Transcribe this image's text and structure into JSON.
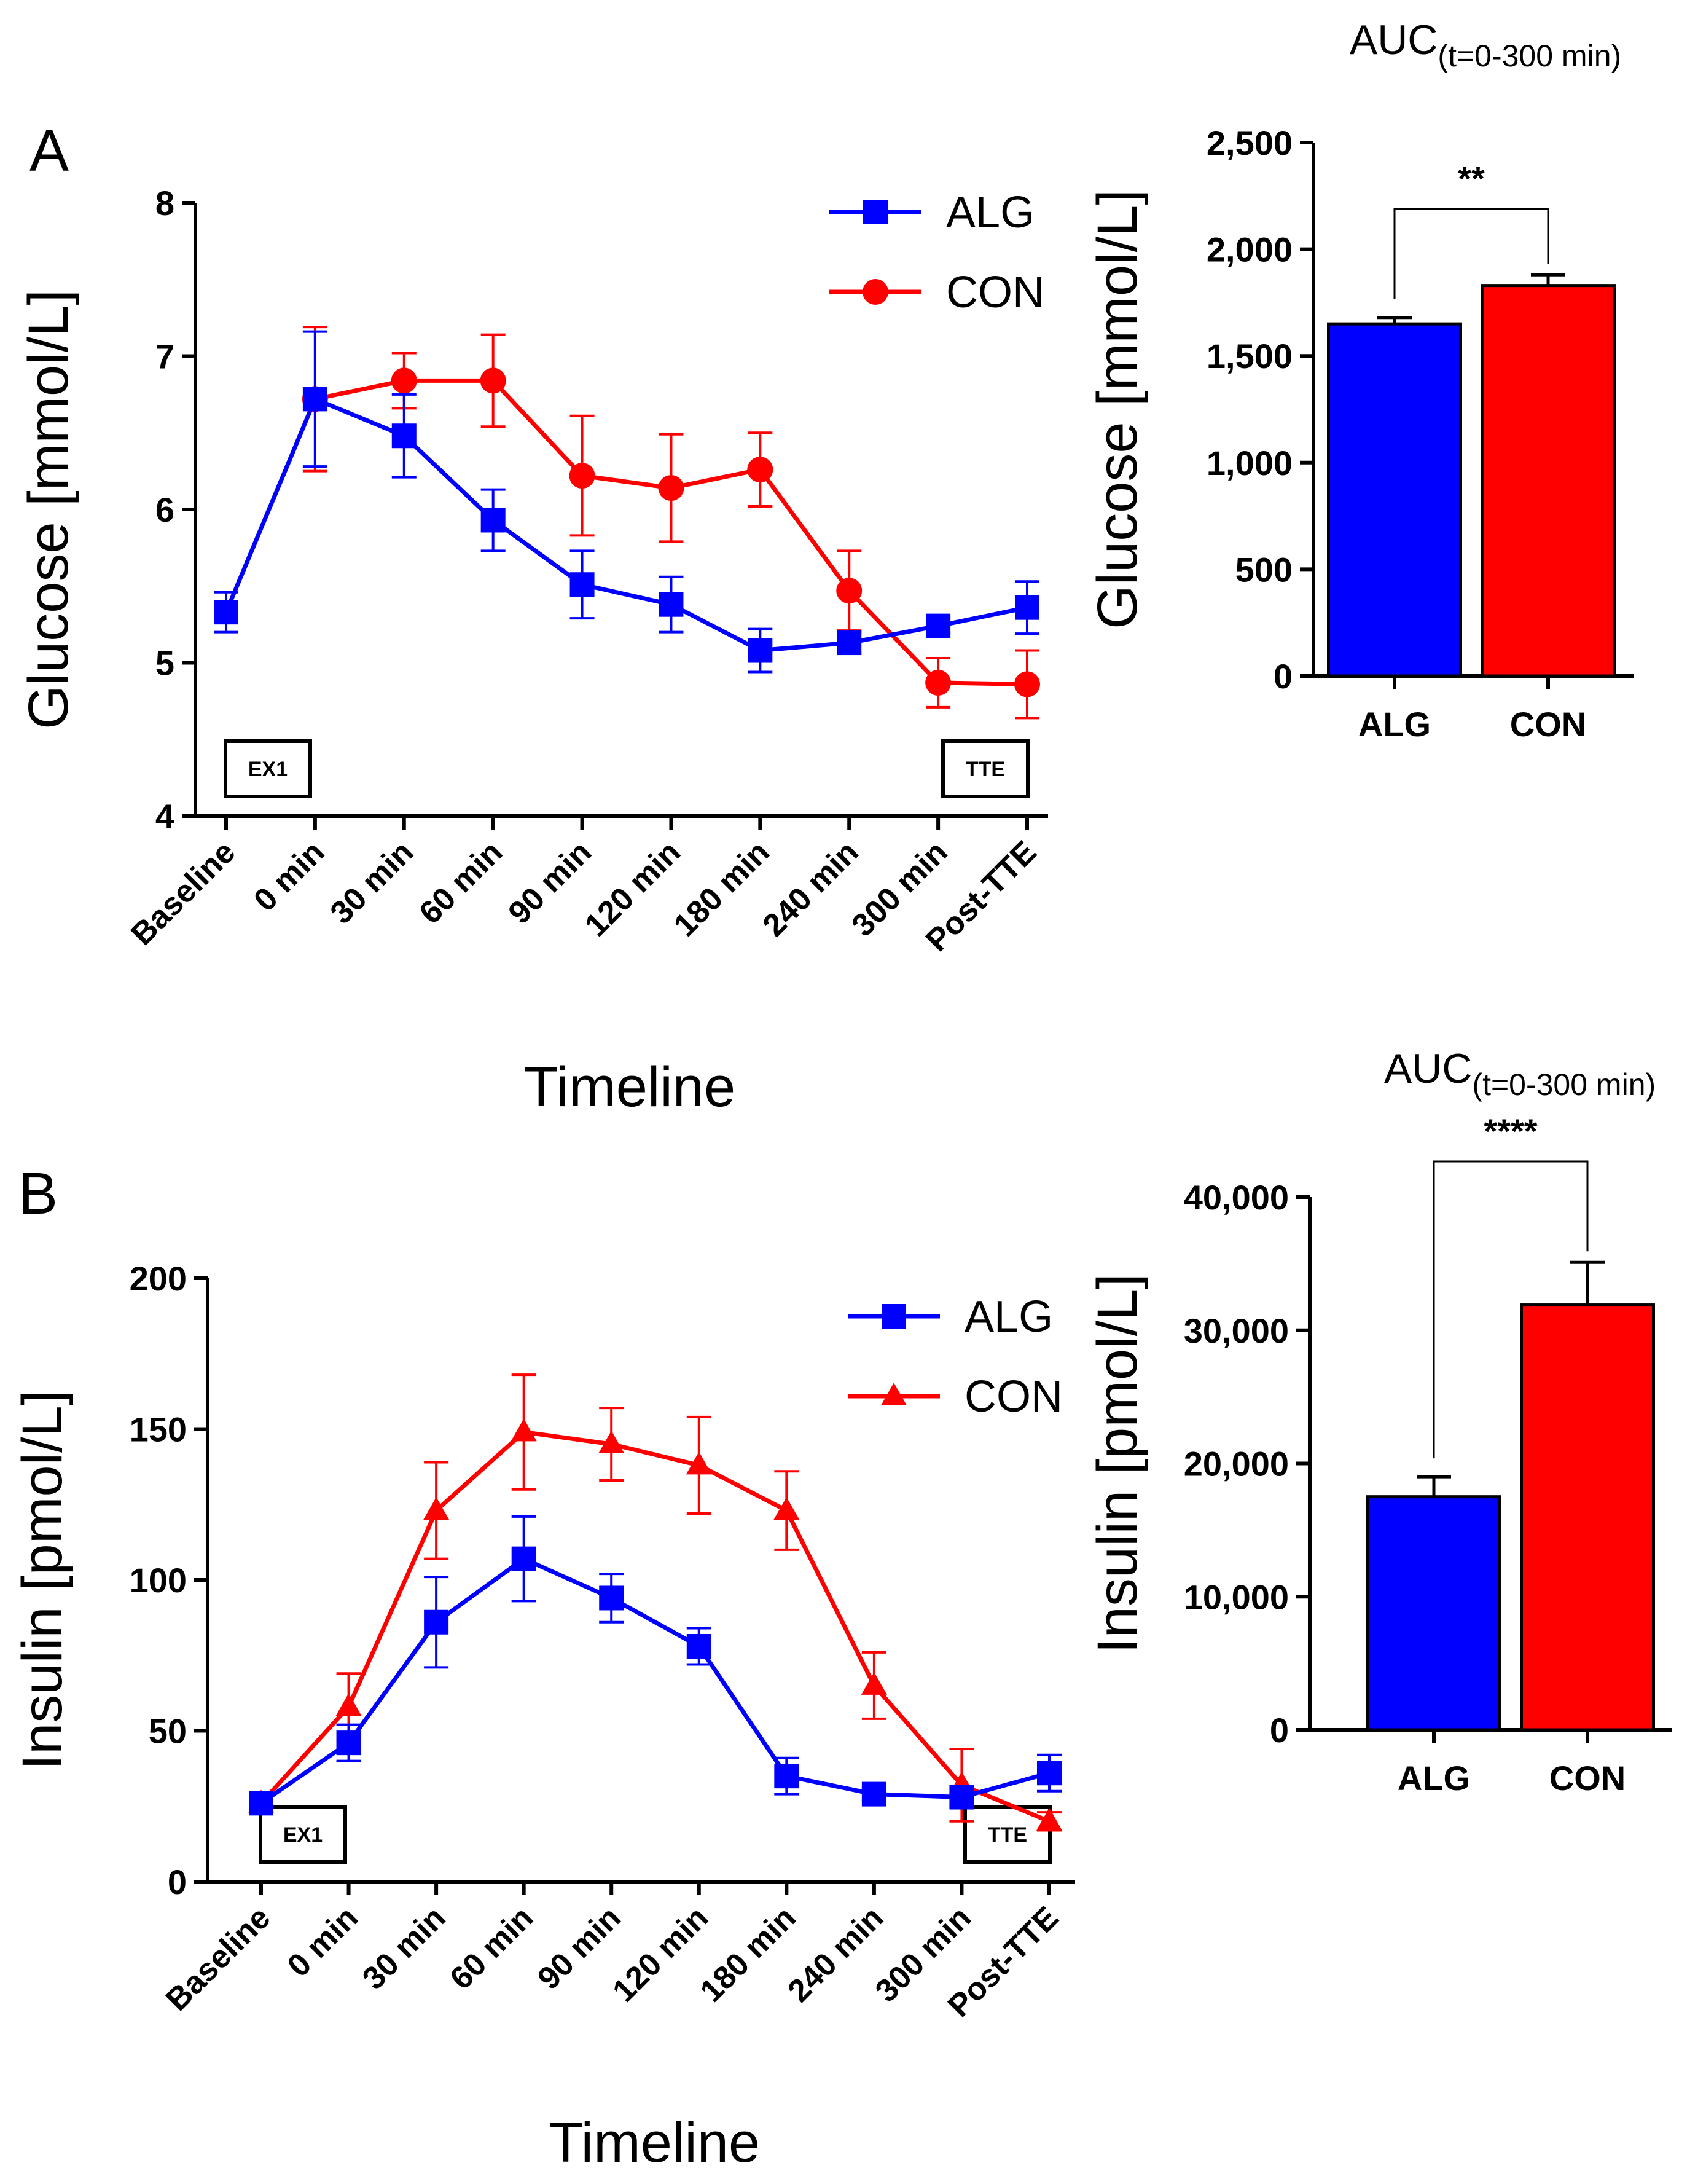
{
  "panels": {
    "a": {
      "letter": "A",
      "line": {
        "type": "line",
        "ylabel": "Glucose [mmol/L]",
        "xlabel": "Timeline",
        "categories": [
          "Baseline",
          "0 min",
          "30 min",
          "60 min",
          "90 min",
          "120 min",
          "180 min",
          "240 min",
          "300 min",
          "Post-TTE"
        ],
        "ylim": [
          4,
          8
        ],
        "yticks": [
          "4",
          "5",
          "6",
          "7",
          "8"
        ],
        "series": [
          {
            "name": "ALG",
            "color": "#0000ff",
            "marker": "square",
            "values": [
              5.33,
              6.72,
              6.48,
              5.93,
              5.51,
              5.38,
              5.08,
              5.13,
              5.24,
              5.36
            ],
            "errors": [
              0.13,
              0.44,
              0.27,
              0.2,
              0.22,
              0.18,
              0.14,
              0.07,
              0.05,
              0.17
            ],
            "start_index": 0
          },
          {
            "name": "CON",
            "color": "#ff0000",
            "marker": "circle",
            "values": [
              null,
              6.72,
              6.84,
              6.84,
              6.22,
              6.14,
              6.26,
              5.47,
              4.87,
              4.86
            ],
            "errors": [
              null,
              0.47,
              0.18,
              0.3,
              0.39,
              0.35,
              0.24,
              0.26,
              0.16,
              0.22
            ],
            "start_index": 1
          }
        ],
        "boxes": [
          "EX1",
          "TTE"
        ]
      },
      "bar": {
        "type": "bar",
        "title_main": "AUC",
        "title_sub": "(t=0-300 min)",
        "ylabel": "Glucose [mmol/L]",
        "categories": [
          "ALG",
          "CON"
        ],
        "values": [
          1650,
          1830
        ],
        "errors": [
          30,
          50
        ],
        "colors": [
          "#0000ff",
          "#ff0000"
        ],
        "ylim": [
          0,
          2500
        ],
        "yticks": [
          "0",
          "500",
          "1,000",
          "1,500",
          "2,000",
          "2,500"
        ],
        "significance": "**"
      }
    },
    "b": {
      "letter": "B",
      "line": {
        "type": "line",
        "ylabel": "Insulin [pmol/L]",
        "xlabel": "Timeline",
        "categories": [
          "Baseline",
          "0 min",
          "30 min",
          "60 min",
          "90 min",
          "120 min",
          "180 min",
          "240 min",
          "300 min",
          "Post-TTE"
        ],
        "ylim": [
          0,
          200
        ],
        "yticks": [
          "0",
          "50",
          "100",
          "150",
          "200"
        ],
        "series": [
          {
            "name": "ALG",
            "color": "#0000ff",
            "marker": "square",
            "values": [
              26,
              46,
              86,
              107,
              94,
              78,
              35,
              29,
              28,
              36
            ],
            "errors": [
              0,
              6,
              15,
              14,
              8,
              6,
              6,
              2,
              3,
              6
            ],
            "start_index": 0
          },
          {
            "name": "CON",
            "color": "#ff0000",
            "marker": "triangle",
            "values": [
              26,
              58,
              123,
              149,
              145,
              138,
              123,
              65,
              32,
              20
            ],
            "errors": [
              0,
              11,
              16,
              19,
              12,
              16,
              13,
              11,
              12,
              3
            ],
            "start_index": 0
          }
        ],
        "boxes": [
          "EX1",
          "TTE"
        ]
      },
      "bar": {
        "type": "bar",
        "title_main": "AUC",
        "title_sub": "(t=0-300 min)",
        "ylabel": "Insulin [pmol/L]",
        "categories": [
          "ALG",
          "CON"
        ],
        "values": [
          17500,
          31900
        ],
        "errors": [
          1500,
          3200
        ],
        "colors": [
          "#0000ff",
          "#ff0000"
        ],
        "ylim": [
          0,
          40000
        ],
        "yticks": [
          "0",
          "10,000",
          "20,000",
          "30,000",
          "40,000"
        ],
        "significance": "****"
      }
    }
  }
}
